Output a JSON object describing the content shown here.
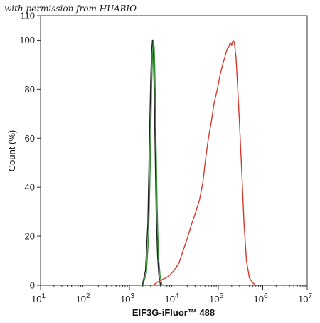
{
  "watermark": "with permission from HUABIO",
  "chart_data": {
    "type": "line",
    "xlabel": "EIF3G-iFluor™ 488",
    "ylabel": "Count  (%)",
    "x_scale": "log",
    "xlim": [
      10,
      10000000
    ],
    "ylim": [
      0,
      110
    ],
    "x_ticks": [
      10,
      100,
      1000,
      10000,
      100000,
      1000000,
      10000000
    ],
    "x_tick_labels": [
      "10",
      "10",
      "10",
      "10",
      "10",
      "10",
      "10"
    ],
    "x_tick_superscripts": [
      "1",
      "2",
      "3",
      "4",
      "5",
      "6",
      "7"
    ],
    "y_ticks": [
      0,
      20,
      40,
      60,
      80,
      100,
      110
    ],
    "y_tick_labels": [
      "0",
      "20",
      "40",
      "60",
      "80",
      "100",
      "110"
    ],
    "grid": false,
    "series": [
      {
        "color": "#222222",
        "x": [
          1950,
          2300,
          2600,
          2800,
          3000,
          3150,
          3300,
          3450,
          3600,
          3800,
          4000,
          4300,
          4600,
          5000
        ],
        "y": [
          0,
          6,
          25,
          55,
          82,
          95,
          100,
          96,
          80,
          55,
          30,
          12,
          4,
          0
        ]
      },
      {
        "color": "#2e8b2e",
        "x": [
          2000,
          2400,
          2700,
          2950,
          3150,
          3300,
          3450,
          3600,
          3750,
          3950,
          4200,
          4500,
          4900,
          5400
        ],
        "y": [
          0,
          5,
          20,
          50,
          80,
          93,
          100,
          97,
          85,
          60,
          32,
          12,
          4,
          0
        ]
      },
      {
        "color": "#d23a2e",
        "x": [
          3500,
          4000,
          5000,
          6500,
          8000,
          10000,
          13000,
          16000,
          20000,
          25000,
          30000,
          38000,
          45000,
          52000,
          60000,
          70000,
          80000,
          95000,
          110000,
          125000,
          140000,
          155000,
          170000,
          185000,
          200000,
          215000,
          230000,
          250000,
          270000,
          300000,
          340000,
          380000,
          430000,
          500000,
          600000,
          700000
        ],
        "y": [
          0,
          1,
          2,
          3,
          4,
          6,
          9,
          14,
          19,
          25,
          29,
          35,
          42,
          52,
          60,
          67,
          74,
          80,
          86,
          90,
          93,
          96,
          97,
          99,
          98,
          100,
          99,
          93,
          82,
          66,
          45,
          25,
          10,
          3,
          1,
          0
        ]
      }
    ]
  }
}
